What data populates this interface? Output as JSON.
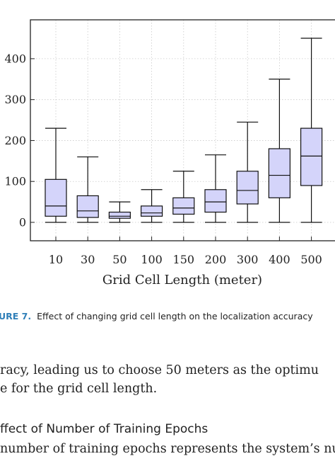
{
  "chart_data": {
    "type": "box",
    "categories": [
      "10",
      "30",
      "50",
      "100",
      "150",
      "200",
      "300",
      "400",
      "500"
    ],
    "boxes": [
      {
        "min": 0,
        "q1": 15,
        "median": 40,
        "q3": 105,
        "max": 230
      },
      {
        "min": 0,
        "q1": 12,
        "median": 28,
        "q3": 65,
        "max": 160
      },
      {
        "min": 0,
        "q1": 10,
        "median": 15,
        "q3": 25,
        "max": 50
      },
      {
        "min": 0,
        "q1": 15,
        "median": 23,
        "q3": 40,
        "max": 80
      },
      {
        "min": 0,
        "q1": 20,
        "median": 35,
        "q3": 60,
        "max": 125
      },
      {
        "min": 0,
        "q1": 25,
        "median": 50,
        "q3": 80,
        "max": 165
      },
      {
        "min": 0,
        "q1": 45,
        "median": 78,
        "q3": 125,
        "max": 245
      },
      {
        "min": 0,
        "q1": 60,
        "median": 115,
        "q3": 180,
        "max": 350
      },
      {
        "min": 0,
        "q1": 90,
        "median": 162,
        "q3": 230,
        "max": 450
      }
    ],
    "yticks": [
      "0",
      "100",
      "200",
      "300",
      "400"
    ],
    "ylim": [
      -45,
      495
    ],
    "xlabel": "Grid Cell Length (meter)",
    "box_fill": "#d4d4fa",
    "line_color": "#111111"
  },
  "caption": {
    "label": "URE 7.",
    "text": "Effect of changing grid cell length on the localization accuracy"
  },
  "paragraph": {
    "line1": "racy, leading us to choose 50 meters as the optimu",
    "line2": "e for the grid cell length."
  },
  "section_heading": "ffect of Number of Training Epochs",
  "next_line": "number of training epochs represents the system’s num"
}
